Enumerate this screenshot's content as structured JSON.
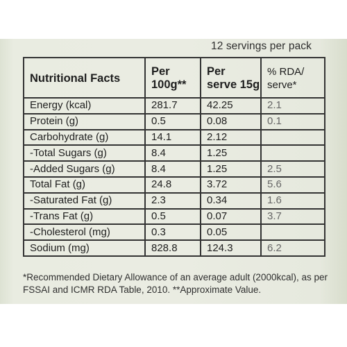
{
  "servings_text": "12 servings per pack",
  "table": {
    "headers": {
      "facts": "Nutritional Facts",
      "per100_line1": "Per",
      "per100_line2": "100g**",
      "serve_line1": "Per",
      "serve_line2": "serve 15g",
      "rda_line1": "% RDA/",
      "rda_line2": "serve*"
    },
    "rows": [
      {
        "label": "Energy (kcal)",
        "per100": "281.7",
        "serve": "42.25",
        "rda": "2.1"
      },
      {
        "label": "Protein (g)",
        "per100": "0.5",
        "serve": "0.08",
        "rda": "0.1"
      },
      {
        "label": "Carbohydrate (g)",
        "per100": "14.1",
        "serve": "2.12",
        "rda": ""
      },
      {
        "label": "-Total Sugars (g)",
        "per100": "8.4",
        "serve": "1.25",
        "rda": ""
      },
      {
        "label": " -Added Sugars (g)",
        "per100": "8.4",
        "serve": "1.25",
        "rda": "2.5"
      },
      {
        "label": "Total Fat (g)",
        "per100": "24.8",
        "serve": "3.72",
        "rda": "5.6"
      },
      {
        "label": " -Saturated Fat (g)",
        "per100": "2.3",
        "serve": "0.34",
        "rda": "1.6"
      },
      {
        "label": " -Trans Fat (g)",
        "per100": "0.5",
        "serve": "0.07",
        "rda": "3.7"
      },
      {
        "label": " -Cholesterol (mg)",
        "per100": "0.3",
        "serve": "0.05",
        "rda": ""
      },
      {
        "label": "Sodium (mg)",
        "per100": "828.8",
        "serve": "124.3",
        "rda": "6.2"
      }
    ]
  },
  "footnote_line1": "*Recommended Dietary Allowance of an average adult (2000kcal), as per",
  "footnote_line2": "FSSAI and ICMR RDA Table, 2010. **Approximate Value."
}
